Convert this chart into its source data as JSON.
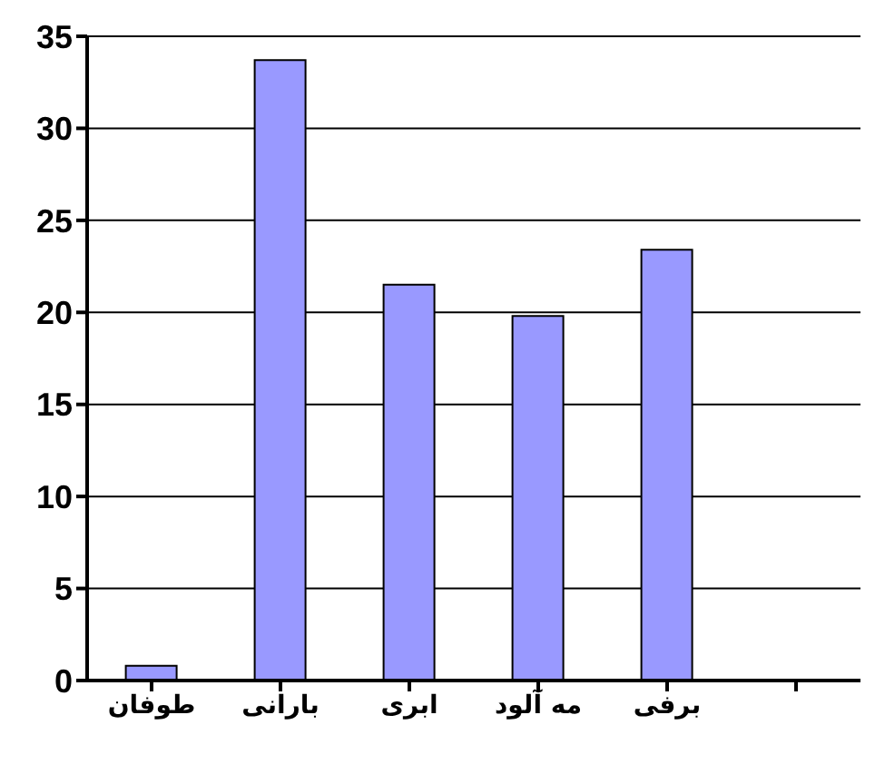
{
  "chart_data": {
    "type": "bar",
    "categories": [
      "طوفان",
      "بارانی",
      "ابری",
      "مه آلود",
      "برفی",
      null
    ],
    "values": [
      0.8,
      33.7,
      21.5,
      19.8,
      23.4,
      null
    ],
    "color": "#9999ff",
    "ylim": [
      0,
      35
    ],
    "yticks": [
      0,
      5,
      10,
      15,
      20,
      25,
      30,
      35
    ],
    "grid": "y"
  }
}
